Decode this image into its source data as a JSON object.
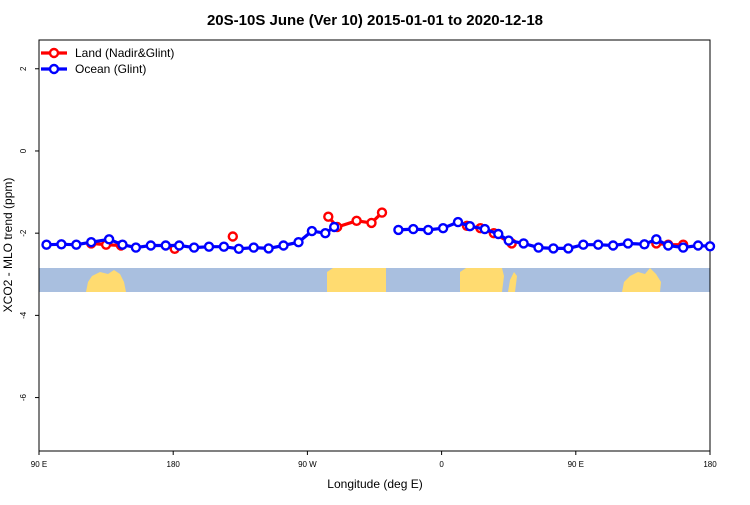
{
  "chart_data": {
    "type": "line",
    "title": "20S-10S June (Ver 10)   2015-01-01 to 2020-12-18",
    "xlabel": "Longitude (deg E)",
    "ylabel": "XCO2 - MLO trend (ppm)",
    "xlim": [
      90,
      540
    ],
    "ylim": [
      -7.3,
      2.7
    ],
    "x_ticks": [
      {
        "value": 90,
        "label": "90 E"
      },
      {
        "value": 180,
        "label": "180"
      },
      {
        "value": 270,
        "label": "90 W"
      },
      {
        "value": 360,
        "label": "0"
      },
      {
        "value": 450,
        "label": "90 E"
      },
      {
        "value": 540,
        "label": "180"
      }
    ],
    "y_ticks": [
      {
        "value": 2,
        "label": "2"
      },
      {
        "value": 0,
        "label": "0"
      },
      {
        "value": -2,
        "label": "-2"
      },
      {
        "value": -4,
        "label": "-4"
      },
      {
        "value": -6,
        "label": "-6"
      }
    ],
    "grid": false,
    "legend_position": "top-left",
    "colors": {
      "land": "#ff0000",
      "ocean": "#0000ff",
      "map_ocean": "#a9bfdf",
      "map_land": "#ffdb70"
    },
    "series": [
      {
        "name": "Land (Nadir&Glint)",
        "color": "#ff0000",
        "segments": [
          [
            [
              125,
              -2.25
            ],
            [
              135,
              -2.28
            ],
            [
              145,
              -2.3
            ]
          ],
          [
            [
              181,
              -2.38
            ]
          ],
          [
            [
              220,
              -2.08
            ]
          ],
          [
            [
              284,
              -1.6
            ],
            [
              290,
              -1.85
            ],
            [
              303,
              -1.7
            ],
            [
              313,
              -1.75
            ],
            [
              320,
              -1.5
            ]
          ],
          [
            [
              377,
              -1.82
            ],
            [
              386,
              -1.88
            ],
            [
              395,
              -2.0
            ],
            [
              407,
              -2.25
            ]
          ],
          [
            [
              504,
              -2.25
            ],
            [
              512,
              -2.28
            ],
            [
              522,
              -2.28
            ]
          ]
        ]
      },
      {
        "name": "Ocean (Glint)",
        "color": "#0000ff",
        "segments": [
          [
            [
              95,
              -2.28
            ],
            [
              105,
              -2.27
            ],
            [
              115,
              -2.28
            ],
            [
              125,
              -2.22
            ],
            [
              137,
              -2.15
            ],
            [
              146,
              -2.28
            ],
            [
              155,
              -2.35
            ],
            [
              165,
              -2.3
            ],
            [
              175,
              -2.3
            ],
            [
              184,
              -2.3
            ],
            [
              194,
              -2.35
            ],
            [
              204,
              -2.33
            ],
            [
              214,
              -2.33
            ],
            [
              224,
              -2.38
            ],
            [
              234,
              -2.35
            ],
            [
              244,
              -2.37
            ],
            [
              254,
              -2.3
            ],
            [
              264,
              -2.22
            ],
            [
              273,
              -1.95
            ],
            [
              282,
              -2.0
            ],
            [
              288,
              -1.85
            ]
          ],
          [
            [
              331,
              -1.92
            ],
            [
              341,
              -1.9
            ],
            [
              351,
              -1.92
            ],
            [
              361,
              -1.88
            ],
            [
              371,
              -1.73
            ],
            [
              379,
              -1.83
            ],
            [
              389,
              -1.9
            ],
            [
              398,
              -2.02
            ],
            [
              405,
              -2.18
            ],
            [
              415,
              -2.25
            ],
            [
              425,
              -2.35
            ],
            [
              435,
              -2.37
            ],
            [
              445,
              -2.37
            ],
            [
              455,
              -2.28
            ],
            [
              465,
              -2.28
            ],
            [
              475,
              -2.3
            ],
            [
              485,
              -2.25
            ],
            [
              496,
              -2.27
            ],
            [
              504,
              -2.15
            ],
            [
              512,
              -2.3
            ],
            [
              522,
              -2.35
            ],
            [
              532,
              -2.3
            ],
            [
              540,
              -2.32
            ]
          ]
        ]
      }
    ]
  }
}
